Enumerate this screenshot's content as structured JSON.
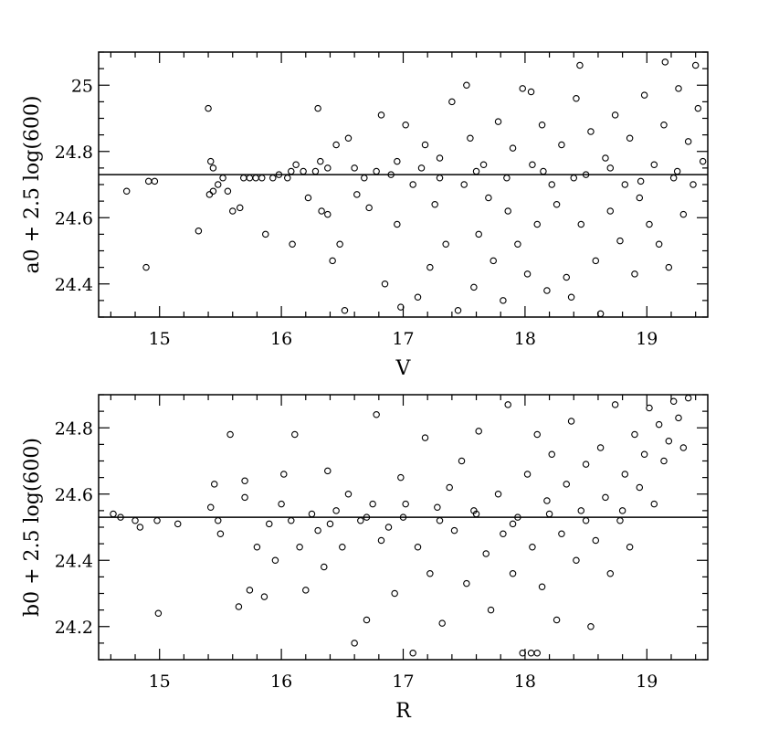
{
  "chart_data": [
    {
      "type": "scatter",
      "title": "",
      "xlabel": "V",
      "ylabel": "a0 + 2.5 log(600)",
      "xlim": [
        14.5,
        19.5
      ],
      "ylim": [
        24.3,
        25.1
      ],
      "xticks": [
        15,
        16,
        17,
        18,
        19
      ],
      "xtick_labels": [
        "15",
        "16",
        "17",
        "18",
        "19"
      ],
      "yticks": [
        24.4,
        24.6,
        24.8,
        25.0
      ],
      "ytick_labels": [
        "24.4",
        "24.6",
        "24.8",
        "25"
      ],
      "reference_line": {
        "y": 24.73
      },
      "series": [
        {
          "marker": "open-circle",
          "points": [
            [
              14.73,
              24.68
            ],
            [
              14.91,
              24.71
            ],
            [
              14.96,
              24.71
            ],
            [
              14.89,
              24.45
            ],
            [
              15.32,
              24.56
            ],
            [
              15.41,
              24.67
            ],
            [
              15.44,
              24.68
            ],
            [
              15.48,
              24.7
            ],
            [
              15.52,
              24.72
            ],
            [
              15.56,
              24.68
            ],
            [
              15.42,
              24.77
            ],
            [
              15.44,
              24.75
            ],
            [
              15.4,
              24.93
            ],
            [
              15.6,
              24.62
            ],
            [
              15.66,
              24.63
            ],
            [
              15.69,
              24.72
            ],
            [
              15.74,
              24.72
            ],
            [
              15.79,
              24.72
            ],
            [
              15.84,
              24.72
            ],
            [
              15.87,
              24.55
            ],
            [
              15.93,
              24.72
            ],
            [
              15.98,
              24.73
            ],
            [
              16.05,
              24.72
            ],
            [
              16.08,
              24.74
            ],
            [
              16.12,
              24.76
            ],
            [
              16.18,
              24.74
            ],
            [
              16.22,
              24.66
            ],
            [
              16.09,
              24.52
            ],
            [
              16.28,
              24.74
            ],
            [
              16.32,
              24.77
            ],
            [
              16.38,
              24.75
            ],
            [
              16.3,
              24.93
            ],
            [
              16.33,
              24.62
            ],
            [
              16.38,
              24.61
            ],
            [
              16.42,
              24.47
            ],
            [
              16.48,
              24.52
            ],
            [
              16.52,
              24.32
            ],
            [
              16.45,
              24.82
            ],
            [
              16.55,
              24.84
            ],
            [
              16.6,
              24.75
            ],
            [
              16.62,
              24.67
            ],
            [
              16.68,
              24.72
            ],
            [
              16.72,
              24.63
            ],
            [
              16.78,
              24.74
            ],
            [
              16.82,
              24.91
            ],
            [
              16.85,
              24.4
            ],
            [
              16.9,
              24.73
            ],
            [
              16.95,
              24.58
            ],
            [
              16.98,
              24.33
            ],
            [
              17.02,
              24.88
            ],
            [
              17.08,
              24.7
            ],
            [
              17.12,
              24.36
            ],
            [
              17.15,
              24.75
            ],
            [
              17.18,
              24.82
            ],
            [
              17.22,
              24.45
            ],
            [
              17.26,
              24.64
            ],
            [
              17.3,
              24.78
            ],
            [
              17.35,
              24.52
            ],
            [
              17.4,
              24.95
            ],
            [
              17.45,
              24.32
            ],
            [
              17.5,
              24.7
            ],
            [
              17.55,
              24.84
            ],
            [
              17.58,
              24.39
            ],
            [
              17.62,
              24.55
            ],
            [
              17.66,
              24.76
            ],
            [
              17.7,
              24.66
            ],
            [
              17.74,
              24.47
            ],
            [
              17.78,
              24.89
            ],
            [
              17.82,
              24.35
            ],
            [
              17.86,
              24.62
            ],
            [
              17.9,
              24.81
            ],
            [
              17.94,
              24.52
            ],
            [
              17.98,
              24.99
            ],
            [
              18.02,
              24.43
            ],
            [
              18.06,
              24.76
            ],
            [
              18.1,
              24.58
            ],
            [
              18.14,
              24.88
            ],
            [
              18.18,
              24.38
            ],
            [
              18.22,
              24.7
            ],
            [
              18.26,
              24.64
            ],
            [
              18.3,
              24.82
            ],
            [
              18.34,
              24.42
            ],
            [
              18.38,
              24.36
            ],
            [
              18.42,
              24.96
            ],
            [
              18.46,
              24.58
            ],
            [
              18.5,
              24.73
            ],
            [
              18.54,
              24.86
            ],
            [
              18.58,
              24.47
            ],
            [
              18.62,
              24.31
            ],
            [
              18.66,
              24.78
            ],
            [
              18.7,
              24.62
            ],
            [
              18.74,
              24.91
            ],
            [
              18.78,
              24.53
            ],
            [
              18.82,
              24.7
            ],
            [
              18.86,
              24.84
            ],
            [
              18.9,
              24.43
            ],
            [
              18.94,
              24.66
            ],
            [
              18.98,
              24.97
            ],
            [
              19.02,
              24.58
            ],
            [
              19.06,
              24.76
            ],
            [
              19.1,
              24.52
            ],
            [
              19.14,
              24.88
            ],
            [
              19.18,
              24.45
            ],
            [
              19.22,
              24.72
            ],
            [
              19.26,
              24.99
            ],
            [
              19.3,
              24.61
            ],
            [
              19.34,
              24.83
            ],
            [
              19.38,
              24.7
            ],
            [
              19.42,
              24.93
            ],
            [
              19.46,
              24.77
            ],
            [
              18.45,
              25.06
            ],
            [
              19.15,
              25.07
            ],
            [
              19.4,
              25.06
            ],
            [
              18.05,
              24.98
            ],
            [
              17.52,
              25.0
            ],
            [
              16.95,
              24.77
            ],
            [
              17.3,
              24.72
            ],
            [
              17.6,
              24.74
            ],
            [
              17.85,
              24.72
            ],
            [
              18.15,
              24.74
            ],
            [
              18.4,
              24.72
            ],
            [
              18.7,
              24.75
            ],
            [
              18.95,
              24.71
            ],
            [
              19.25,
              24.74
            ]
          ]
        }
      ]
    },
    {
      "type": "scatter",
      "title": "",
      "xlabel": "R",
      "ylabel": "b0 + 2.5 log(600)",
      "xlim": [
        14.5,
        19.5
      ],
      "ylim": [
        24.1,
        24.9
      ],
      "xticks": [
        15,
        16,
        17,
        18,
        19
      ],
      "xtick_labels": [
        "15",
        "16",
        "17",
        "18",
        "19"
      ],
      "yticks": [
        24.2,
        24.4,
        24.6,
        24.8
      ],
      "ytick_labels": [
        "24.2",
        "24.4",
        "24.6",
        "24.8"
      ],
      "reference_line": {
        "y": 24.53
      },
      "series": [
        {
          "marker": "open-circle",
          "points": [
            [
              14.62,
              24.54
            ],
            [
              14.68,
              24.53
            ],
            [
              14.8,
              24.52
            ],
            [
              14.84,
              24.5
            ],
            [
              14.98,
              24.52
            ],
            [
              15.15,
              24.51
            ],
            [
              14.99,
              24.24
            ],
            [
              15.42,
              24.56
            ],
            [
              15.45,
              24.63
            ],
            [
              15.48,
              24.52
            ],
            [
              15.5,
              24.48
            ],
            [
              15.58,
              24.78
            ],
            [
              15.65,
              24.26
            ],
            [
              15.7,
              24.59
            ],
            [
              15.74,
              24.31
            ],
            [
              15.7,
              24.64
            ],
            [
              15.8,
              24.44
            ],
            [
              15.86,
              24.29
            ],
            [
              15.9,
              24.51
            ],
            [
              15.95,
              24.4
            ],
            [
              16.0,
              24.57
            ],
            [
              16.02,
              24.66
            ],
            [
              16.08,
              24.52
            ],
            [
              16.11,
              24.78
            ],
            [
              16.15,
              24.44
            ],
            [
              16.2,
              24.31
            ],
            [
              16.25,
              24.54
            ],
            [
              16.3,
              24.49
            ],
            [
              16.35,
              24.38
            ],
            [
              16.38,
              24.67
            ],
            [
              16.45,
              24.55
            ],
            [
              16.5,
              24.44
            ],
            [
              16.55,
              24.6
            ],
            [
              16.6,
              24.15
            ],
            [
              16.65,
              24.52
            ],
            [
              16.7,
              24.22
            ],
            [
              16.75,
              24.57
            ],
            [
              16.78,
              24.84
            ],
            [
              16.82,
              24.46
            ],
            [
              16.88,
              24.5
            ],
            [
              16.93,
              24.3
            ],
            [
              16.98,
              24.65
            ],
            [
              17.02,
              24.57
            ],
            [
              17.08,
              24.12
            ],
            [
              17.12,
              24.44
            ],
            [
              17.18,
              24.77
            ],
            [
              17.22,
              24.36
            ],
            [
              17.28,
              24.56
            ],
            [
              17.32,
              24.21
            ],
            [
              17.38,
              24.62
            ],
            [
              17.42,
              24.49
            ],
            [
              17.48,
              24.7
            ],
            [
              17.52,
              24.33
            ],
            [
              17.58,
              24.55
            ],
            [
              17.62,
              24.79
            ],
            [
              17.68,
              24.42
            ],
            [
              17.72,
              24.25
            ],
            [
              17.78,
              24.6
            ],
            [
              17.82,
              24.48
            ],
            [
              17.86,
              24.87
            ],
            [
              17.9,
              24.36
            ],
            [
              17.94,
              24.53
            ],
            [
              17.98,
              24.12
            ],
            [
              18.02,
              24.66
            ],
            [
              18.06,
              24.44
            ],
            [
              18.1,
              24.78
            ],
            [
              18.14,
              24.32
            ],
            [
              18.18,
              24.58
            ],
            [
              18.22,
              24.72
            ],
            [
              18.26,
              24.22
            ],
            [
              18.3,
              24.48
            ],
            [
              18.34,
              24.63
            ],
            [
              18.38,
              24.82
            ],
            [
              18.42,
              24.4
            ],
            [
              18.46,
              24.55
            ],
            [
              18.5,
              24.69
            ],
            [
              18.54,
              24.2
            ],
            [
              18.58,
              24.46
            ],
            [
              18.62,
              24.74
            ],
            [
              18.66,
              24.59
            ],
            [
              18.7,
              24.36
            ],
            [
              18.74,
              24.87
            ],
            [
              18.78,
              24.52
            ],
            [
              18.82,
              24.66
            ],
            [
              18.86,
              24.44
            ],
            [
              18.9,
              24.78
            ],
            [
              18.94,
              24.62
            ],
            [
              18.98,
              24.72
            ],
            [
              19.02,
              24.86
            ],
            [
              19.06,
              24.57
            ],
            [
              19.1,
              24.81
            ],
            [
              19.14,
              24.7
            ],
            [
              19.18,
              24.76
            ],
            [
              19.22,
              24.88
            ],
            [
              19.26,
              24.83
            ],
            [
              19.3,
              24.74
            ],
            [
              19.34,
              24.89
            ],
            [
              17.0,
              24.53
            ],
            [
              17.3,
              24.52
            ],
            [
              17.6,
              24.54
            ],
            [
              17.9,
              24.51
            ],
            [
              18.2,
              24.54
            ],
            [
              18.5,
              24.52
            ],
            [
              18.8,
              24.55
            ],
            [
              16.7,
              24.53
            ],
            [
              16.4,
              24.51
            ],
            [
              18.1,
              24.12
            ],
            [
              18.05,
              24.12
            ]
          ]
        }
      ]
    }
  ]
}
